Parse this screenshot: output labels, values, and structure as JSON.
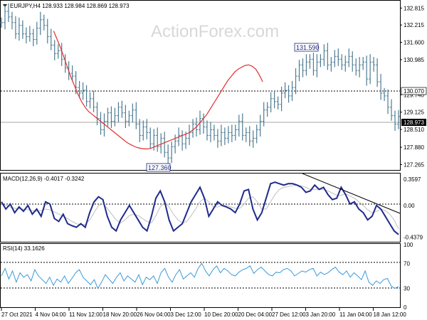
{
  "watermark": "ActionForex.com",
  "colors": {
    "price": "#4e7c93",
    "sma": "#e03030",
    "macd": "#1f2a8c",
    "signal": "#c0c0c0",
    "rsi": "#3a9ad9",
    "trendline": "#000000",
    "current_box": "#000000"
  },
  "chart_data": [
    {
      "type": "line",
      "subtype": "candlestick",
      "title": "EURJPY,H4  128.933 128.984 128.869 128.973",
      "ylim": [
        127.1,
        133.05
      ],
      "yticks": [
        "132.815",
        "132.215",
        "131.600",
        "130.985",
        "130.070",
        "129.740",
        "129.125",
        "128.510",
        "127.880",
        "127.265"
      ],
      "current_price": "128.973",
      "reference_level": "130.070",
      "annotations": [
        {
          "text": "131.590",
          "x": "4 Jan 2022",
          "y": 131.59
        },
        {
          "text": "127.360",
          "x": "1 Dec 2021",
          "y": 127.36
        }
      ],
      "series": [
        {
          "name": "price_close",
          "values": [
            132.3,
            132.7,
            132.5,
            132.3,
            131.9,
            132.2,
            131.9,
            131.8,
            131.9,
            131.7,
            132.1,
            132.4,
            132.2,
            131.8,
            131.5,
            131.2,
            131.3,
            131.0,
            130.7,
            130.5,
            130.4,
            130.0,
            129.8,
            129.9,
            129.5,
            129.6,
            129.3,
            128.9,
            128.5,
            128.8,
            129.1,
            128.8,
            129.0,
            129.3,
            129.1,
            128.8,
            129.0,
            129.2,
            128.7,
            128.3,
            128.6,
            128.4,
            128.0,
            128.3,
            127.9,
            128.2,
            127.7,
            127.5,
            127.9,
            128.1,
            128.3,
            128.0,
            128.2,
            128.4,
            128.7,
            128.5,
            128.9,
            128.6,
            128.3,
            128.5,
            128.3,
            128.1,
            128.4,
            128.2,
            128.4,
            128.3,
            128.5,
            128.8,
            128.3,
            128.4,
            128.1,
            128.2,
            128.5,
            128.8,
            129.2,
            129.3,
            129.6,
            129.5,
            129.4,
            129.8,
            129.9,
            129.7,
            130.0,
            130.4,
            130.8,
            130.6,
            130.9,
            131.0,
            130.6,
            130.9,
            131.0,
            131.3,
            130.8,
            130.9,
            131.1,
            131.0,
            130.8,
            130.9,
            131.1,
            130.8,
            130.6,
            130.8,
            130.9,
            130.3,
            130.9,
            130.8,
            130.2,
            129.8,
            129.7,
            129.3,
            129.0,
            128.7,
            128.97
          ]
        },
        {
          "name": "sma",
          "values": [
            null,
            null,
            null,
            null,
            null,
            null,
            null,
            null,
            null,
            null,
            null,
            null,
            null,
            null,
            null,
            132.0,
            131.7,
            131.4,
            131.05,
            130.7,
            130.35,
            130.05,
            129.75,
            129.5,
            129.3,
            129.15,
            129.05,
            128.95,
            128.85,
            128.75,
            128.65,
            128.55,
            128.45,
            128.35,
            128.25,
            128.15,
            128.05,
            127.98,
            127.92,
            127.87,
            127.84,
            127.82,
            127.82,
            127.85,
            127.9,
            127.95,
            128.0,
            128.05,
            128.1,
            128.15,
            128.2,
            128.25,
            128.3,
            128.35,
            128.4,
            128.5,
            128.6,
            128.75,
            128.9,
            129.05,
            129.25,
            129.45,
            129.65,
            129.85,
            130.05,
            130.25,
            130.4,
            130.55,
            130.65,
            130.72,
            130.78,
            130.8,
            130.75,
            130.65,
            130.45,
            130.2,
            null,
            null,
            null,
            null,
            null,
            null,
            null,
            null,
            null,
            null,
            null,
            null,
            null,
            null,
            null,
            null,
            null,
            null,
            null,
            null,
            null,
            null,
            null,
            null,
            null,
            null,
            null,
            null,
            null,
            null,
            null,
            null,
            null,
            null,
            null,
            null,
            null,
            null,
            null
          ]
        }
      ]
    },
    {
      "type": "line",
      "title": "MACD(12,26,9) -0.4017 -0.3242",
      "ylim": [
        -0.5,
        0.42
      ],
      "yticks": [
        "0.3597",
        "0.00",
        "-0.4379"
      ],
      "series": [
        {
          "name": "MACD",
          "values": [
            0.05,
            -0.05,
            0.02,
            -0.1,
            -0.02,
            -0.08,
            0.0,
            -0.12,
            -0.05,
            -0.15,
            0.05,
            0.02,
            -0.18,
            -0.22,
            -0.12,
            -0.25,
            -0.28,
            -0.3,
            -0.25,
            -0.3,
            -0.1,
            0.05,
            0.12,
            0.08,
            -0.15,
            -0.3,
            -0.35,
            -0.2,
            -0.1,
            0.0,
            -0.1,
            -0.2,
            -0.3,
            -0.35,
            -0.15,
            0.1,
            0.2,
            0.05,
            -0.2,
            -0.35,
            -0.3,
            -0.25,
            -0.1,
            0.05,
            0.15,
            0.25,
            0.1,
            -0.15,
            -0.05,
            0.05,
            0.0,
            -0.02,
            -0.05,
            -0.1,
            0.02,
            0.2,
            0.22,
            -0.05,
            -0.2,
            -0.1,
            0.1,
            0.3,
            0.32,
            0.3,
            0.28,
            0.3,
            0.3,
            0.28,
            0.25,
            0.18,
            0.2,
            0.28,
            0.22,
            0.25,
            0.15,
            0.08,
            0.1,
            0.25,
            0.15,
            0.02,
            0.05,
            -0.05,
            -0.1,
            -0.2,
            -0.15,
            0.0,
            -0.05,
            -0.15,
            -0.25,
            -0.35,
            -0.4
          ]
        },
        {
          "name": "Signal",
          "values": [
            0.02,
            0.0,
            -0.02,
            -0.04,
            -0.05,
            -0.05,
            -0.06,
            -0.07,
            -0.08,
            -0.07,
            -0.05,
            -0.06,
            -0.09,
            -0.12,
            -0.15,
            -0.18,
            -0.22,
            -0.25,
            -0.27,
            -0.26,
            -0.2,
            -0.1,
            0.0,
            0.02,
            -0.04,
            -0.12,
            -0.2,
            -0.24,
            -0.2,
            -0.14,
            -0.12,
            -0.14,
            -0.18,
            -0.22,
            -0.24,
            -0.14,
            -0.02,
            0.04,
            -0.02,
            -0.12,
            -0.2,
            -0.24,
            -0.22,
            -0.14,
            -0.05,
            0.05,
            0.1,
            0.05,
            -0.02,
            -0.02,
            0.0,
            0.0,
            -0.02,
            -0.04,
            -0.04,
            0.02,
            0.1,
            0.12,
            0.05,
            -0.05,
            -0.05,
            0.05,
            0.15,
            0.22,
            0.25,
            0.26,
            0.27,
            0.28,
            0.27,
            0.25,
            0.22,
            0.22,
            0.22,
            0.22,
            0.2,
            0.17,
            0.14,
            0.14,
            0.16,
            0.13,
            0.1,
            0.05,
            0.0,
            -0.06,
            -0.1,
            -0.08,
            -0.05,
            -0.07,
            -0.12,
            -0.2,
            -0.32
          ]
        }
      ],
      "trendline": {
        "from": {
          "x": "29 Dec 2021",
          "y": 0.36
        },
        "to": {
          "x": "18 Jan 2022",
          "y": -0.1
        }
      }
    },
    {
      "type": "line",
      "title": "RSI(14) 33.1626",
      "ylim": [
        0,
        100
      ],
      "yticks": [
        "100",
        "70",
        "30",
        "0"
      ],
      "levels": [
        70,
        30
      ],
      "series": [
        {
          "name": "RSI",
          "values": [
            50,
            62,
            45,
            58,
            40,
            55,
            48,
            52,
            42,
            60,
            50,
            44,
            38,
            48,
            35,
            45,
            40,
            50,
            38,
            46,
            55,
            60,
            48,
            42,
            36,
            44,
            30,
            40,
            52,
            45,
            38,
            48,
            55,
            42,
            50,
            45,
            40,
            52,
            36,
            48,
            44,
            50,
            38,
            55,
            62,
            48,
            40,
            52,
            60,
            45,
            50,
            55,
            48,
            62,
            70,
            58,
            50,
            60,
            66,
            55,
            62,
            58,
            52,
            50,
            56,
            60,
            62,
            66,
            54,
            60,
            64,
            58,
            52,
            50,
            56,
            55,
            60,
            62,
            58,
            50,
            54,
            58,
            56,
            60,
            62,
            50,
            56,
            52,
            55,
            60,
            64,
            56,
            52,
            58,
            48,
            55,
            50,
            44,
            58,
            40,
            35,
            42,
            38,
            44,
            46,
            34,
            30,
            33
          ]
        }
      ]
    }
  ],
  "xaxis_labels": [
    "27 Oct 2021",
    "4 Nov 04:00",
    "11 Nov 12:00",
    "18 Nov 20:00",
    "26 Nov 04:00",
    "3 Dec 12:00",
    "10 Dec 20:00",
    "20 Dec 04:00",
    "27 Dec 12:00",
    "3 Jan 20:00",
    "11 Jan 04:00",
    "18 Jan 12:00"
  ]
}
